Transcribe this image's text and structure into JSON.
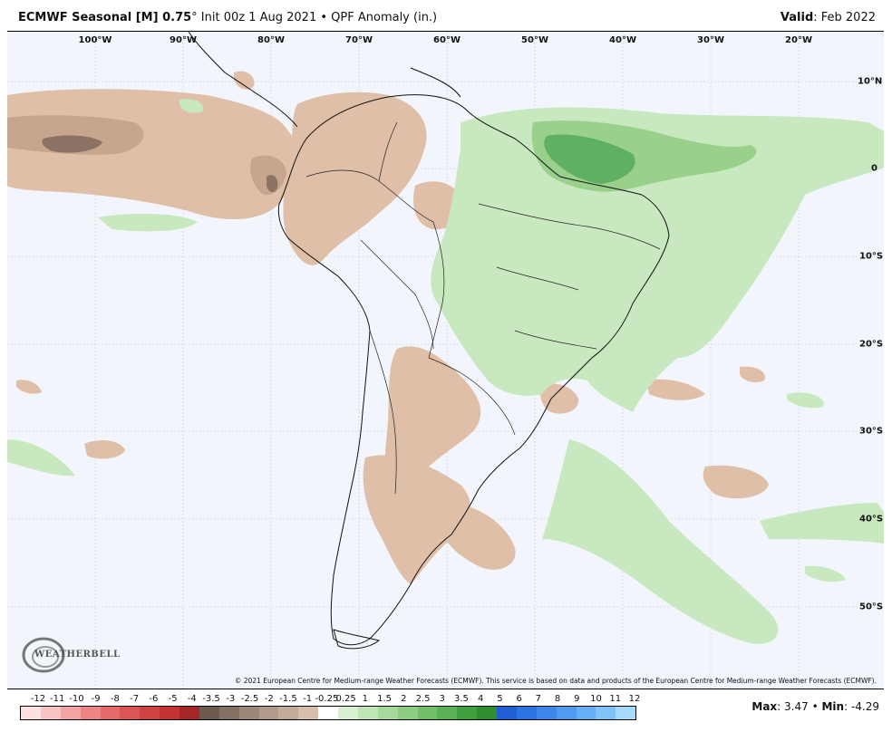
{
  "header": {
    "model": "ECMWF Seasonal [M] 0.75",
    "degree": "°",
    "init": "Init 00z 1 Aug 2021",
    "bullet": "•",
    "field": "QPF Anomaly (in.)",
    "valid_label": "Valid",
    "valid_value": "Feb 2022"
  },
  "map": {
    "longitude_labels": [
      "100°W",
      "90°W",
      "80°W",
      "70°W",
      "60°W",
      "50°W",
      "40°W",
      "30°W",
      "20°W"
    ],
    "latitude_labels": [
      "10°N",
      "0",
      "10°S",
      "20°S",
      "30°S",
      "40°S",
      "50°S"
    ],
    "copyright": "© 2021 European Centre for Medium-range Weather Forecasts (ECMWF). This service is based on data and products of the European Centre for Medium-range Weather Forecasts (ECMWF).",
    "logo_text": "WEATHERBELL",
    "colors": {
      "ocean": "#f2f6fc",
      "dry_light": "#e0bfa8",
      "dry_mid": "#c7a58e",
      "dry_dark": "#8b7262",
      "wet_light": "#c8e8bf",
      "wet_mid": "#98d08c",
      "wet_dark": "#5fb062"
    }
  },
  "legend": {
    "labels": [
      "-12",
      "-11",
      "-10",
      "-9",
      "-8",
      "-7",
      "-6",
      "-5",
      "-4",
      "-3.5",
      "-3",
      "-2.5",
      "-2",
      "-1.5",
      "-1",
      "-0.25",
      "0.25",
      "1",
      "1.5",
      "2",
      "2.5",
      "3",
      "3.5",
      "4",
      "5",
      "6",
      "7",
      "8",
      "9",
      "10",
      "11",
      "12"
    ],
    "colors": [
      "#fde0e0",
      "#f9c3c3",
      "#f4a3a3",
      "#ee8585",
      "#e56b6b",
      "#db5555",
      "#d04343",
      "#c43434",
      "#a52626",
      "#6e5a50",
      "#857064",
      "#9c8677",
      "#b19a89",
      "#c2ab99",
      "#d8bfac",
      "#ffffff",
      "#d9f0d3",
      "#c0e5b7",
      "#a6d99c",
      "#8ccd82",
      "#71c068",
      "#58b152",
      "#41a03e",
      "#2f8f30",
      "#1f5fd6",
      "#2b73e3",
      "#3b87ec",
      "#4f9bf2",
      "#66aff6",
      "#80c3f9",
      "#a6dbfc"
    ]
  },
  "stats": {
    "max_label": "Max",
    "max_value": "3.47",
    "min_label": "Min",
    "min_value": "-4.29"
  }
}
